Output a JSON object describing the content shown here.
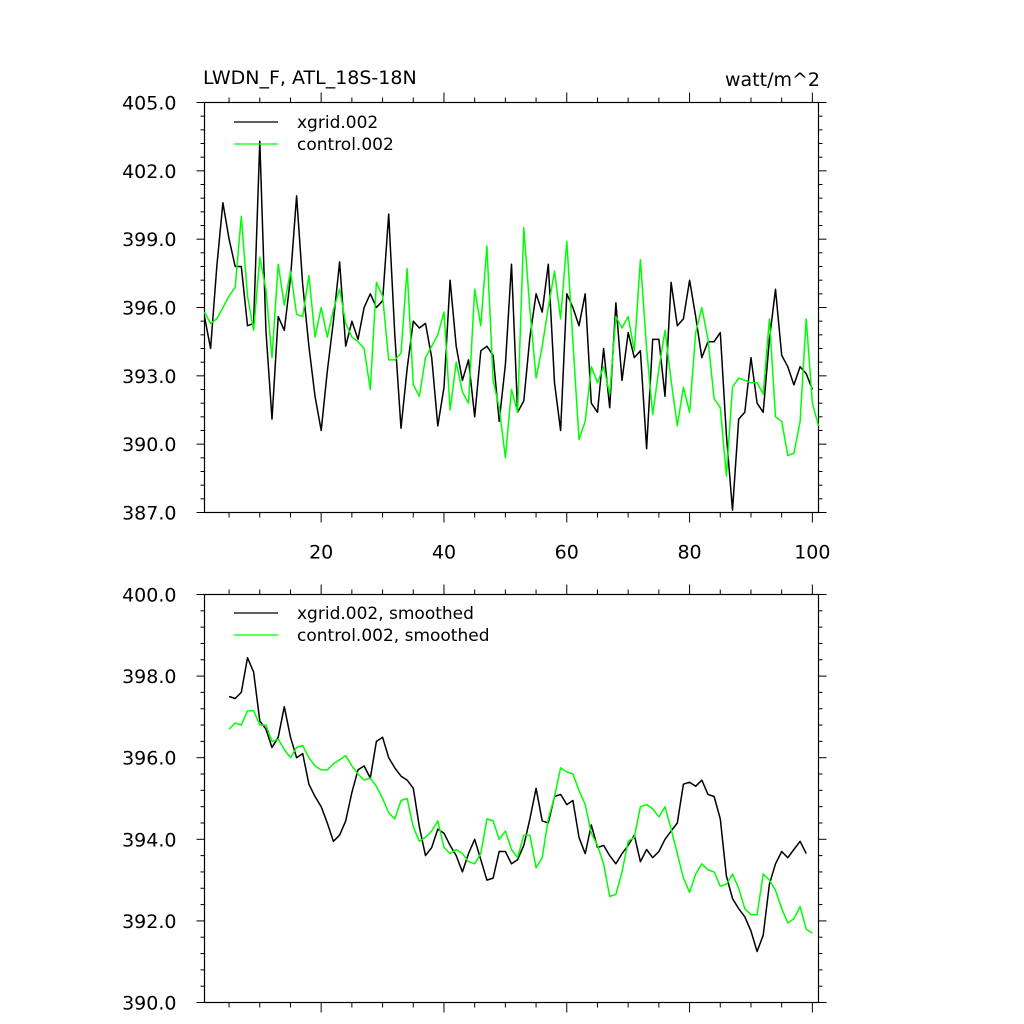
{
  "chart_data": [
    {
      "type": "line",
      "title": "LWDN_F, ATL_18S-18N",
      "units": "watt/m^2",
      "xlim": [
        1,
        101
      ],
      "ylim": [
        387.0,
        405.0
      ],
      "x_tick_labels": [
        "20",
        "40",
        "60",
        "80",
        "100"
      ],
      "x_ticks": [
        20,
        40,
        60,
        80,
        100
      ],
      "y_tick_labels": [
        "387.0",
        "390.0",
        "393.0",
        "396.0",
        "399.0",
        "402.0",
        "405.0"
      ],
      "y_ticks": [
        387,
        390,
        393,
        396,
        399,
        402,
        405
      ],
      "legend_position": "top-left",
      "series": [
        {
          "name": "xgrid.002",
          "color": "#000000",
          "values": [
            395.6,
            394.2,
            397.8,
            400.6,
            399.0,
            397.8,
            397.8,
            395.2,
            395.3,
            403.3,
            395.0,
            391.1,
            395.6,
            395.0,
            397.3,
            400.9,
            397.0,
            394.3,
            392.1,
            390.6,
            393.2,
            395.4,
            398.0,
            394.3,
            395.4,
            394.6,
            396.0,
            396.6,
            396.0,
            396.3,
            400.1,
            394.8,
            390.7,
            393.3,
            395.4,
            395.1,
            395.3,
            393.8,
            390.8,
            392.5,
            397.2,
            394.3,
            392.8,
            393.7,
            391.2,
            394.1,
            394.3,
            393.9,
            391.0,
            393.5,
            397.9,
            391.4,
            391.9,
            394.7,
            396.6,
            395.8,
            397.9,
            392.7,
            390.6,
            396.6,
            396.0,
            395.2,
            396.6,
            391.8,
            391.4,
            394.2,
            391.6,
            396.2,
            392.8,
            394.9,
            393.8,
            394.1,
            389.8,
            394.6,
            394.6,
            392.1,
            397.1,
            395.2,
            395.5,
            397.2,
            395.6,
            393.8,
            394.5,
            394.5,
            394.9,
            390.4,
            387.1,
            391.1,
            391.4,
            393.8,
            391.8,
            391.4,
            394.6,
            396.8,
            393.9,
            393.4,
            392.6,
            393.4,
            393.1,
            392.4
          ]
        },
        {
          "name": "control.002",
          "color": "#00ff00",
          "values": [
            395.8,
            395.3,
            395.5,
            396.0,
            396.5,
            396.9,
            400.0,
            396.5,
            395.0,
            398.2,
            396.8,
            393.8,
            397.9,
            396.1,
            397.6,
            395.7,
            395.6,
            397.4,
            394.7,
            396.0,
            394.7,
            395.9,
            396.8,
            395.3,
            394.7,
            394.5,
            394.2,
            392.4,
            397.1,
            396.5,
            393.7,
            393.7,
            394.0,
            397.7,
            392.6,
            392.1,
            393.8,
            394.3,
            394.8,
            395.8,
            391.5,
            393.6,
            392.3,
            391.8,
            396.8,
            395.2,
            398.7,
            392.8,
            391.6,
            389.4,
            392.4,
            391.4,
            399.5,
            395.9,
            392.9,
            394.3,
            396.0,
            397.6,
            395.5,
            398.9,
            394.5,
            390.2,
            391.0,
            393.4,
            392.7,
            393.4,
            392.2,
            395.6,
            395.1,
            395.6,
            394.1,
            398.1,
            394.2,
            391.3,
            393.3,
            395.0,
            392.8,
            390.8,
            392.5,
            391.4,
            394.9,
            396.0,
            394.6,
            392.0,
            391.6,
            388.6,
            392.5,
            392.9,
            392.8,
            392.7,
            392.7,
            392.2,
            395.5,
            391.2,
            391.0,
            389.5,
            389.6,
            391.0,
            395.5,
            391.8,
            390.8
          ]
        }
      ]
    },
    {
      "type": "line",
      "title": "",
      "xlim": [
        1,
        101
      ],
      "ylim": [
        390.0,
        400.0
      ],
      "y_tick_labels": [
        "390.0",
        "392.0",
        "394.0",
        "396.0",
        "398.0",
        "400.0"
      ],
      "y_ticks": [
        390,
        392,
        394,
        396,
        398,
        400
      ],
      "x_ticks": [
        20,
        40,
        60,
        80,
        100
      ],
      "legend_position": "top-left",
      "series": [
        {
          "name": "xgrid.002, smoothed",
          "color": "#000000",
          "x_start": 5,
          "values": [
            397.5,
            397.45,
            397.6,
            398.45,
            398.1,
            396.9,
            396.7,
            396.25,
            396.5,
            397.25,
            396.5,
            396.0,
            396.1,
            395.35,
            395.05,
            394.8,
            394.4,
            393.95,
            394.1,
            394.45,
            395.15,
            395.7,
            395.8,
            395.5,
            396.4,
            396.5,
            396.0,
            395.75,
            395.55,
            395.45,
            395.25,
            394.3,
            393.6,
            393.8,
            394.25,
            394.15,
            393.85,
            393.6,
            393.2,
            393.65,
            394.0,
            393.5,
            393.0,
            393.05,
            393.7,
            393.7,
            393.4,
            393.5,
            393.85,
            394.5,
            395.25,
            394.45,
            394.4,
            395.05,
            395.1,
            394.85,
            394.95,
            394.05,
            393.65,
            394.35,
            393.8,
            393.85,
            393.6,
            393.4,
            393.65,
            393.85,
            394.1,
            393.45,
            393.75,
            393.55,
            393.7,
            394.0,
            394.2,
            394.4,
            395.35,
            395.4,
            395.3,
            395.45,
            395.1,
            395.05,
            394.5,
            393.1,
            392.55,
            392.3,
            392.1,
            391.75,
            391.25,
            391.65,
            392.9,
            393.4,
            393.7,
            393.55,
            393.75,
            393.95,
            393.65
          ]
        },
        {
          "name": "control.002, smoothed",
          "color": "#00ff00",
          "x_start": 5,
          "values": [
            396.7,
            396.85,
            396.8,
            397.15,
            397.15,
            396.8,
            396.8,
            396.4,
            396.45,
            396.2,
            396.0,
            396.25,
            396.3,
            396.0,
            395.8,
            395.7,
            395.7,
            395.85,
            395.95,
            396.05,
            395.8,
            395.6,
            395.45,
            395.5,
            395.3,
            395.0,
            394.65,
            394.5,
            394.95,
            395.0,
            394.3,
            393.95,
            394.05,
            394.2,
            394.45,
            393.8,
            393.65,
            393.75,
            393.65,
            393.45,
            393.4,
            393.65,
            394.5,
            394.45,
            394.0,
            394.2,
            393.75,
            393.55,
            394.1,
            394.1,
            393.3,
            393.55,
            394.5,
            395.05,
            395.75,
            395.65,
            395.6,
            395.2,
            394.85,
            394.15,
            393.85,
            393.4,
            392.6,
            392.65,
            393.2,
            393.95,
            394.05,
            394.8,
            394.85,
            394.75,
            394.55,
            394.8,
            394.25,
            393.65,
            393.05,
            392.7,
            393.15,
            393.4,
            393.25,
            393.2,
            392.85,
            392.9,
            393.15,
            392.8,
            392.3,
            392.15,
            392.15,
            393.15,
            393.0,
            392.75,
            392.3,
            391.95,
            392.05,
            392.35,
            391.8,
            391.7
          ]
        }
      ]
    }
  ]
}
